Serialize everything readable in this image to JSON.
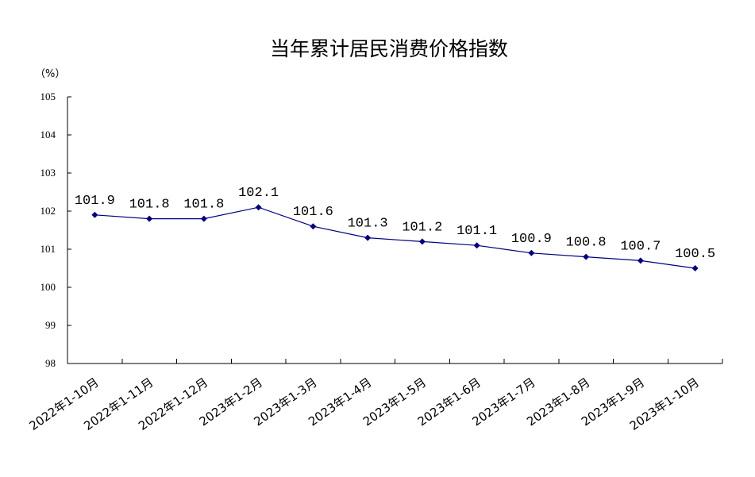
{
  "chart_data": {
    "type": "line",
    "title": "当年累计居民消费价格指数",
    "ylabel": "（%）",
    "xlabel": "",
    "ylim": [
      98,
      105
    ],
    "yticks": [
      98,
      99,
      100,
      101,
      102,
      103,
      104,
      105
    ],
    "grid": false,
    "categories": [
      "2022年1-10月",
      "2022年1-11月",
      "2022年1-12月",
      "2023年1-2月",
      "2023年1-3月",
      "2023年1-4月",
      "2023年1-5月",
      "2023年1-6月",
      "2023年1-7月",
      "2023年1-8月",
      "2023年1-9月",
      "2023年1-10月"
    ],
    "series": [
      {
        "values": [
          101.9,
          101.8,
          101.8,
          102.1,
          101.6,
          101.3,
          101.2,
          101.1,
          100.9,
          100.8,
          100.7,
          100.5
        ],
        "labels": [
          "101.9",
          "101.8",
          "101.8",
          "102.1",
          "101.6",
          "101.3",
          "101.2",
          "101.1",
          "100.9",
          "100.8",
          "100.7",
          "100.5"
        ],
        "color": "#000080",
        "marker": "diamond"
      }
    ]
  }
}
